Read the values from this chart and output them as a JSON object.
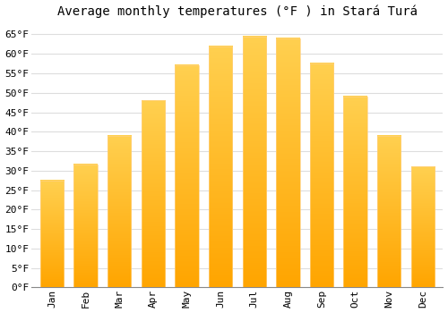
{
  "title": "Average monthly temperatures (°F ) in Stará Turá",
  "months": [
    "Jan",
    "Feb",
    "Mar",
    "Apr",
    "May",
    "Jun",
    "Jul",
    "Aug",
    "Sep",
    "Oct",
    "Nov",
    "Dec"
  ],
  "values": [
    27.5,
    31.5,
    39.0,
    48.0,
    57.0,
    62.0,
    64.5,
    64.0,
    57.5,
    49.0,
    39.0,
    31.0
  ],
  "bar_color_bottom": "#FFA500",
  "bar_color_top": "#FFD050",
  "ylim": [
    0,
    68
  ],
  "yticks": [
    0,
    5,
    10,
    15,
    20,
    25,
    30,
    35,
    40,
    45,
    50,
    55,
    60,
    65
  ],
  "background_color": "#ffffff",
  "grid_color": "#dddddd",
  "title_fontsize": 10,
  "tick_fontsize": 8,
  "font_family": "monospace"
}
